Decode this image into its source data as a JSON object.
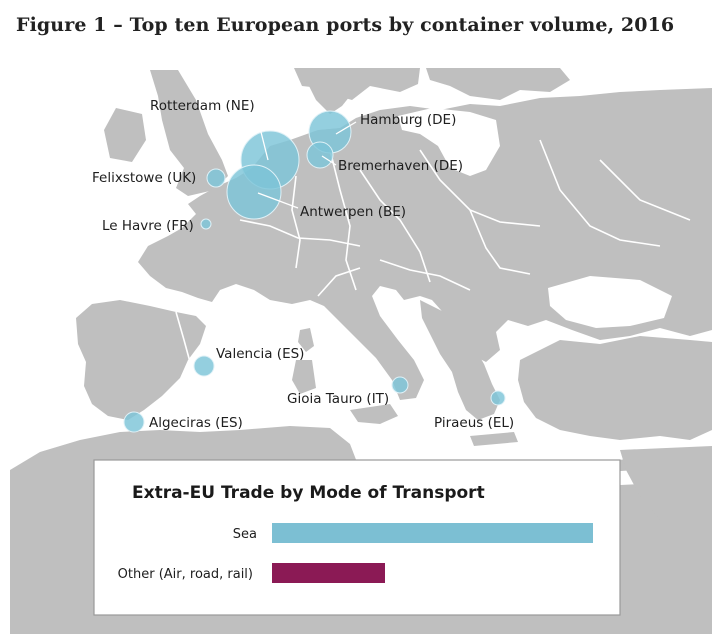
{
  "title": "Figure 1 – Top ten European ports by container volume, 2016",
  "colors": {
    "sea": "#ffffff",
    "land": "#bfbfbf",
    "border": "#ffffff",
    "bubble": "#7cc4d8",
    "bar_sea": "#7cbfd3",
    "bar_other": "#8b1a55"
  },
  "ports": [
    {
      "name": "Rotterdam (NE)"
    },
    {
      "name": "Hamburg (DE)"
    },
    {
      "name": "Bremerhaven (DE)"
    },
    {
      "name": "Felixstowe (UK)"
    },
    {
      "name": "Antwerpen (BE)"
    },
    {
      "name": "Le Havre (FR)"
    },
    {
      "name": "Valencia (ES)"
    },
    {
      "name": "Gioia Tauro (IT)"
    },
    {
      "name": "Algeciras (ES)"
    },
    {
      "name": "Piraeus (EL)"
    }
  ],
  "legend": {
    "title": "Extra-EU Trade by Mode of Transport",
    "bars": [
      {
        "label": "Sea"
      },
      {
        "label": "Other (Air, road, rail)"
      }
    ]
  }
}
